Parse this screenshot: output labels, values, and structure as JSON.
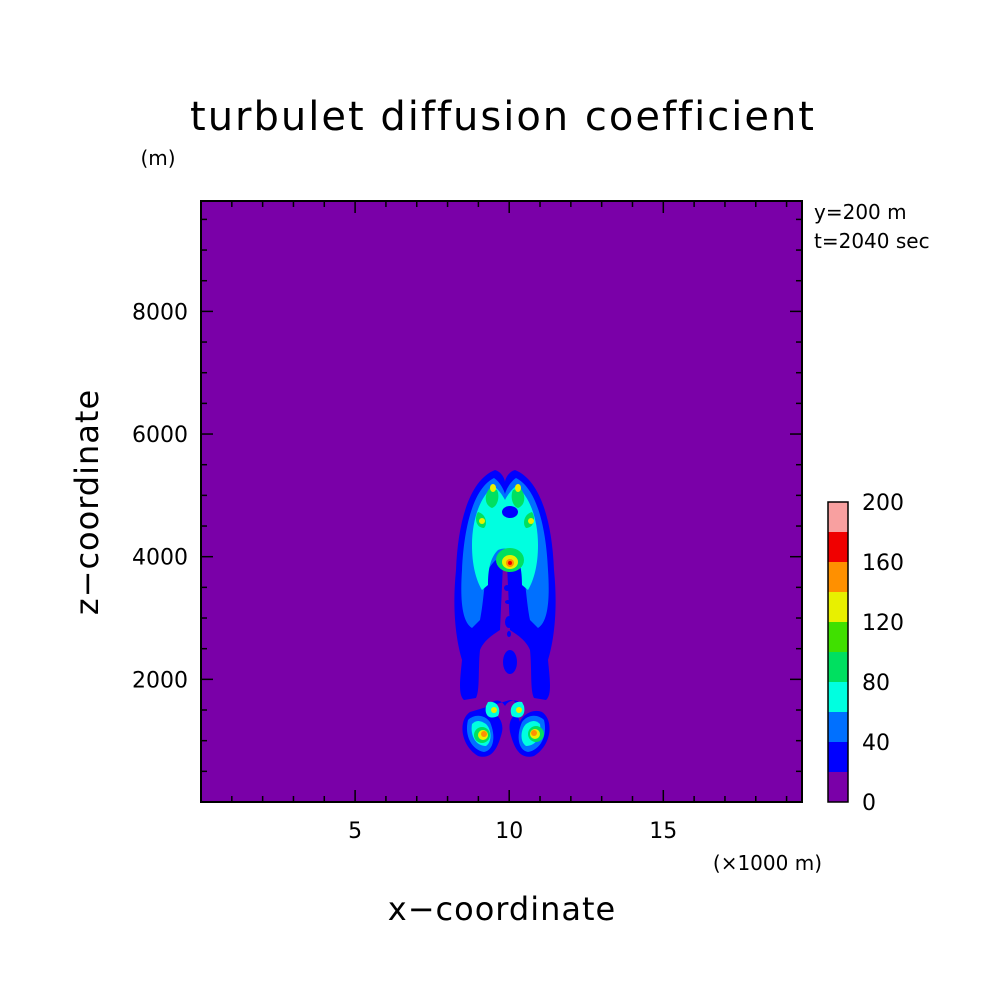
{
  "chart_data": {
    "type": "heatmap",
    "title": "turbulet diffusion coefficient",
    "xlabel": "x−coordinate",
    "ylabel": "z−coordinate",
    "x_unit": "(×1000 m)",
    "y_unit": "(m)",
    "annotations": [
      "y=200 m",
      "t=2040 sec"
    ],
    "xlim": [
      0,
      19.5
    ],
    "ylim": [
      0,
      9800
    ],
    "x_ticks": [
      5,
      10,
      15
    ],
    "y_ticks": [
      2000,
      4000,
      6000,
      8000
    ],
    "x_tick_labels": [
      "5",
      "10",
      "15"
    ],
    "y_tick_labels": [
      "2000",
      "4000",
      "6000",
      "8000"
    ],
    "colorbar": {
      "levels": [
        0,
        20,
        40,
        60,
        80,
        100,
        120,
        140,
        160,
        180,
        200
      ],
      "labels": [
        "0",
        "40",
        "80",
        "120",
        "160",
        "200"
      ],
      "colors": [
        "#7a00a8",
        "#0000ff",
        "#0070ff",
        "#00ffe0",
        "#00e060",
        "#40e000",
        "#e8f000",
        "#ff9000",
        "#f00000",
        "#f8a0a0"
      ]
    },
    "background_color": "#7a00a8",
    "plume_center_x": 10.1,
    "plume_top_z": 5450,
    "plume_bottom_z": 850
  }
}
